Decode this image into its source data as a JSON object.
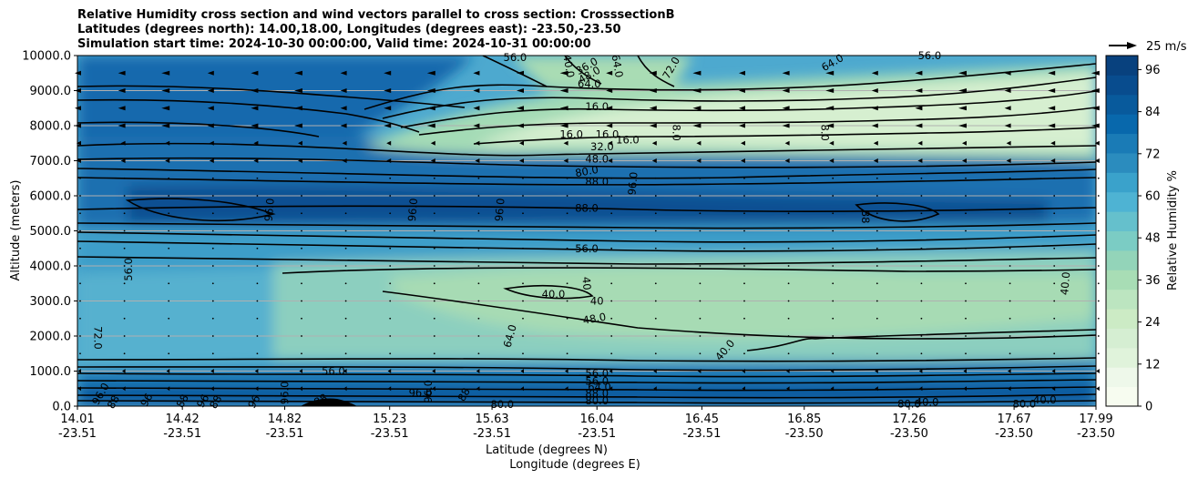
{
  "chart_data": {
    "type": "contour",
    "title_lines": [
      "Relative Humidity cross section and wind vectors parallel to cross section: CrosssectionB",
      "Latitudes (degrees north): 14.00,18.00, Longitudes (degrees east): -23.50,-23.50",
      "Simulation start time: 2024-10-30 00:00:00, Valid time: 2024-10-31 00:00:00"
    ],
    "ylabel": "Altitude (meters)",
    "xlabel_lines": [
      "Latitude (degrees N)",
      "Longitude (degrees E)"
    ],
    "ylim": [
      0,
      10000
    ],
    "y_ticks": [
      "0.0",
      "1000.0",
      "2000.0",
      "3000.0",
      "4000.0",
      "5000.0",
      "6000.0",
      "7000.0",
      "8000.0",
      "9000.0",
      "10000.0"
    ],
    "x_ticks": [
      {
        "lat": "14.01",
        "lon": "-23.51"
      },
      {
        "lat": "14.42",
        "lon": "-23.51"
      },
      {
        "lat": "14.82",
        "lon": "-23.51"
      },
      {
        "lat": "15.23",
        "lon": "-23.51"
      },
      {
        "lat": "15.63",
        "lon": "-23.51"
      },
      {
        "lat": "16.04",
        "lon": "-23.51"
      },
      {
        "lat": "16.45",
        "lon": "-23.51"
      },
      {
        "lat": "16.85",
        "lon": "-23.50"
      },
      {
        "lat": "17.26",
        "lon": "-23.50"
      },
      {
        "lat": "17.67",
        "lon": "-23.50"
      },
      {
        "lat": "17.99",
        "lon": "-23.50"
      }
    ],
    "colorbar": {
      "label": "Relative Humidity %",
      "ticks": [
        "0",
        "12",
        "24",
        "36",
        "48",
        "60",
        "72",
        "84",
        "96"
      ],
      "range": [
        0,
        100
      ],
      "colormap": "GnBu",
      "low_color": "#f2faee",
      "high_color": "#0a4a8a"
    },
    "quiver_key": "25 m/s",
    "grid": "horizontal",
    "contour_labels": [
      {
        "text": "96.0",
        "lat": 14.1,
        "alt": 350,
        "rot": -60
      },
      {
        "text": "88",
        "lat": 14.15,
        "alt": 120,
        "rot": -60
      },
      {
        "text": "96",
        "lat": 14.28,
        "alt": 180,
        "rot": -60
      },
      {
        "text": "88",
        "lat": 14.42,
        "alt": 150,
        "rot": -60
      },
      {
        "text": "96",
        "lat": 14.5,
        "alt": 150,
        "rot": -60
      },
      {
        "text": "88",
        "lat": 14.55,
        "alt": 120,
        "rot": -60
      },
      {
        "text": "96",
        "lat": 14.7,
        "alt": 130,
        "rot": -60
      },
      {
        "text": "96.0",
        "lat": 14.82,
        "alt": 380,
        "rot": -90
      },
      {
        "text": "56.0",
        "lat": 15.01,
        "alt": 1000,
        "rot": 0
      },
      {
        "text": "88",
        "lat": 14.96,
        "alt": 180,
        "rot": -30
      },
      {
        "text": "96.0",
        "lat": 15.38,
        "alt": 420,
        "rot": -90
      },
      {
        "text": "96.0",
        "lat": 15.35,
        "alt": 380,
        "rot": 0
      },
      {
        "text": "88",
        "lat": 15.52,
        "alt": 330,
        "rot": -60
      },
      {
        "text": "80.0",
        "lat": 15.67,
        "alt": 50,
        "rot": 0
      },
      {
        "text": "56.0",
        "lat": 16.04,
        "alt": 930,
        "rot": 0
      },
      {
        "text": "56.0",
        "lat": 16.04,
        "alt": 720,
        "rot": 0
      },
      {
        "text": "64.0",
        "lat": 16.05,
        "alt": 540,
        "rot": 0
      },
      {
        "text": "88.0",
        "lat": 16.04,
        "alt": 370,
        "rot": 0
      },
      {
        "text": "80.0",
        "lat": 16.04,
        "alt": 150,
        "rot": 0
      },
      {
        "text": "80.0",
        "lat": 17.26,
        "alt": 60,
        "rot": 0
      },
      {
        "text": "40.0",
        "lat": 17.33,
        "alt": 120,
        "rot": 0
      },
      {
        "text": "80.0",
        "lat": 17.71,
        "alt": 60,
        "rot": 0
      },
      {
        "text": "40.0",
        "lat": 17.79,
        "alt": 180,
        "rot": 0
      },
      {
        "text": "72.0",
        "lat": 14.09,
        "alt": 1950,
        "rot": 90
      },
      {
        "text": "56.0",
        "lat": 14.21,
        "alt": 3900,
        "rot": -90
      },
      {
        "text": "64.0",
        "lat": 15.7,
        "alt": 2000,
        "rot": -75
      },
      {
        "text": "40.0",
        "lat": 16.54,
        "alt": 1600,
        "rot": -50
      },
      {
        "text": "40.0",
        "lat": 15.87,
        "alt": 3200,
        "rot": 0
      },
      {
        "text": "40",
        "lat": 16.0,
        "alt": 3500,
        "rot": 85
      },
      {
        "text": "40",
        "lat": 16.04,
        "alt": 3000,
        "rot": 0
      },
      {
        "text": "48.0",
        "lat": 16.03,
        "alt": 2500,
        "rot": -10
      },
      {
        "text": "56.0",
        "lat": 16.0,
        "alt": 4500,
        "rot": 0
      },
      {
        "text": "40.0",
        "lat": 17.87,
        "alt": 3500,
        "rot": -85
      },
      {
        "text": "96.0",
        "lat": 14.76,
        "alt": 5600,
        "rot": -85
      },
      {
        "text": "96.0",
        "lat": 15.32,
        "alt": 5600,
        "rot": -85
      },
      {
        "text": "96.0",
        "lat": 15.66,
        "alt": 5600,
        "rot": -85
      },
      {
        "text": "88.0",
        "lat": 16.0,
        "alt": 5650,
        "rot": 0
      },
      {
        "text": "88",
        "lat": 17.09,
        "alt": 5400,
        "rot": 90
      },
      {
        "text": "88.0",
        "lat": 16.04,
        "alt": 6400,
        "rot": 0
      },
      {
        "text": "80.0",
        "lat": 16.0,
        "alt": 6700,
        "rot": -10
      },
      {
        "text": "96.0",
        "lat": 16.18,
        "alt": 6350,
        "rot": -85
      },
      {
        "text": "48.0",
        "lat": 16.04,
        "alt": 7050,
        "rot": 0
      },
      {
        "text": "32.0",
        "lat": 16.06,
        "alt": 7400,
        "rot": 0
      },
      {
        "text": "16.0",
        "lat": 15.94,
        "alt": 7750,
        "rot": 0
      },
      {
        "text": "16.0",
        "lat": 16.08,
        "alt": 7750,
        "rot": 0
      },
      {
        "text": "16.0",
        "lat": 16.16,
        "alt": 7600,
        "rot": 0
      },
      {
        "text": "8.0",
        "lat": 16.35,
        "alt": 7800,
        "rot": 90
      },
      {
        "text": "8.0",
        "lat": 16.93,
        "alt": 7800,
        "rot": 90
      },
      {
        "text": "16.0",
        "lat": 16.04,
        "alt": 8550,
        "rot": 0
      },
      {
        "text": "64.0",
        "lat": 16.01,
        "alt": 9200,
        "rot": 0
      },
      {
        "text": "40.0",
        "lat": 15.93,
        "alt": 9700,
        "rot": 80
      },
      {
        "text": "36.0",
        "lat": 16.0,
        "alt": 9700,
        "rot": -30
      },
      {
        "text": "64.0",
        "lat": 16.12,
        "alt": 9700,
        "rot": 80
      },
      {
        "text": "72.0",
        "lat": 16.33,
        "alt": 9650,
        "rot": -60
      },
      {
        "text": "56.0",
        "lat": 15.72,
        "alt": 9950,
        "rot": 0
      },
      {
        "text": "64.0",
        "lat": 16.96,
        "alt": 9800,
        "rot": -30
      },
      {
        "text": "48.0",
        "lat": 16.01,
        "alt": 9450,
        "rot": -30
      },
      {
        "text": "56.0",
        "lat": 17.34,
        "alt": 10000,
        "rot": 0
      }
    ]
  }
}
